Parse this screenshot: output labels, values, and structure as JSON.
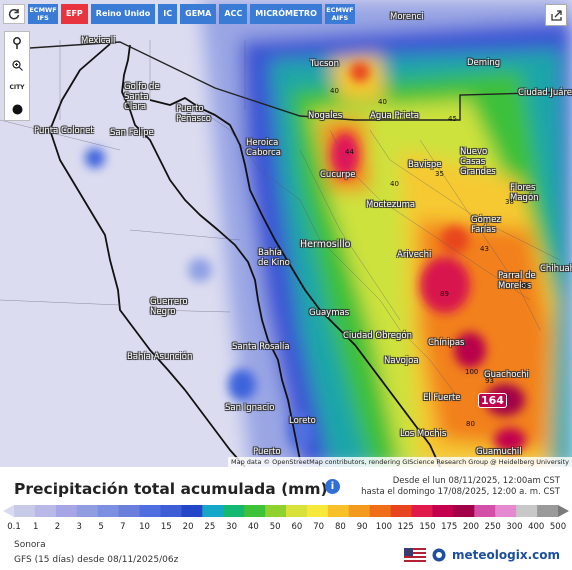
{
  "toolbar": {
    "buttons": [
      {
        "label": "ECMWF IFS",
        "active": false
      },
      {
        "label": "EFP",
        "active": true
      },
      {
        "label": "Reino Unido",
        "active": false
      },
      {
        "label": "IC",
        "active": false
      },
      {
        "label": "GEMA",
        "active": false
      },
      {
        "label": "ACC",
        "active": false
      },
      {
        "label": "MICRÓMETRO",
        "active": false
      },
      {
        "label": "ECMWF AIFS",
        "active": false
      }
    ],
    "refresh_icon": "refresh-icon",
    "share_icon": "share-icon"
  },
  "controls": {
    "zoom_in_icon": "zoom-in-icon",
    "city_label": "CITY",
    "pin_icon": "location-pin-icon",
    "dot_icon": "marker-dot-icon"
  },
  "map": {
    "places": [
      {
        "name": "Mexicali"
      },
      {
        "name": "Tucson"
      },
      {
        "name": "Morenci"
      },
      {
        "name": "Deming"
      },
      {
        "name": "Ciudad Juárez"
      },
      {
        "name": "Golfo de Santa Clara"
      },
      {
        "name": "Puerto Peñasco"
      },
      {
        "name": "Punta Colonet"
      },
      {
        "name": "San Felipe"
      },
      {
        "name": "Nogales"
      },
      {
        "name": "Agua Prieta"
      },
      {
        "name": "Heroica Caborca"
      },
      {
        "name": "Cucurpe"
      },
      {
        "name": "Bavispe"
      },
      {
        "name": "Nuevo Casas Grandes"
      },
      {
        "name": "Flores Magón"
      },
      {
        "name": "Moctezuma"
      },
      {
        "name": "Gómez Farías"
      },
      {
        "name": "Hermosillo"
      },
      {
        "name": "Bahía de Kino"
      },
      {
        "name": "Arivechi"
      },
      {
        "name": "Chihuahua"
      },
      {
        "name": "Parral de Morelos"
      },
      {
        "name": "Guerrero Negro"
      },
      {
        "name": "Guaymas"
      },
      {
        "name": "Ciudad Obregón"
      },
      {
        "name": "Santa Rosalía"
      },
      {
        "name": "Bahía Asunción"
      },
      {
        "name": "Navojoa"
      },
      {
        "name": "Chínipas"
      },
      {
        "name": "Guachochi"
      },
      {
        "name": "San Ignacio"
      },
      {
        "name": "El Fuerte"
      },
      {
        "name": "Loreto"
      },
      {
        "name": "Los Mochis"
      },
      {
        "name": "Guamuchil"
      },
      {
        "name": "Puerto"
      }
    ],
    "values": [
      "40",
      "40",
      "45",
      "44",
      "40",
      "35",
      "38",
      "43",
      "89",
      "100",
      "93",
      "80",
      "38",
      "164"
    ],
    "max_value": "164",
    "attribution": "Map data © OpenStreetMap contributors, rendering GIScience Research Group @ Heidelberg University"
  },
  "legend": {
    "title": "Precipitación total acumulada (mm)",
    "info_icon": "info-icon",
    "period_line1": "Desde el lun 08/11/2025, 12:00am CST",
    "period_line2": "hasta el domingo 17/08/2025, 12:00 a. m. CST",
    "region": "Sonora",
    "model": "GFS (15 días) desde 08/11/2025/06z",
    "brand": "meteologix.com",
    "flag_icon": "us-flag-icon",
    "ticks": [
      "0.1",
      "1",
      "2",
      "3",
      "5",
      "7",
      "10",
      "15",
      "20",
      "25",
      "30",
      "40",
      "50",
      "60",
      "70",
      "80",
      "90",
      "100",
      "125",
      "150",
      "175",
      "200",
      "250",
      "300",
      "400",
      "500"
    ],
    "colors": [
      "#c9c9e8",
      "#b9b9e8",
      "#a6a6e6",
      "#8f9ee0",
      "#7c8fe0",
      "#6a7fdc",
      "#4f6fe0",
      "#3e5ed6",
      "#2446c8",
      "#16a6c8",
      "#15b870",
      "#3ec23a",
      "#8fd230",
      "#d8e23a",
      "#f6e93a",
      "#f8c12a",
      "#f49a1e",
      "#ef6e18",
      "#e8441e",
      "#e01a4a",
      "#c2004e",
      "#a3004a",
      "#d44fa7",
      "#e58ad0",
      "#c8c8c8",
      "#9a9a9a"
    ]
  }
}
